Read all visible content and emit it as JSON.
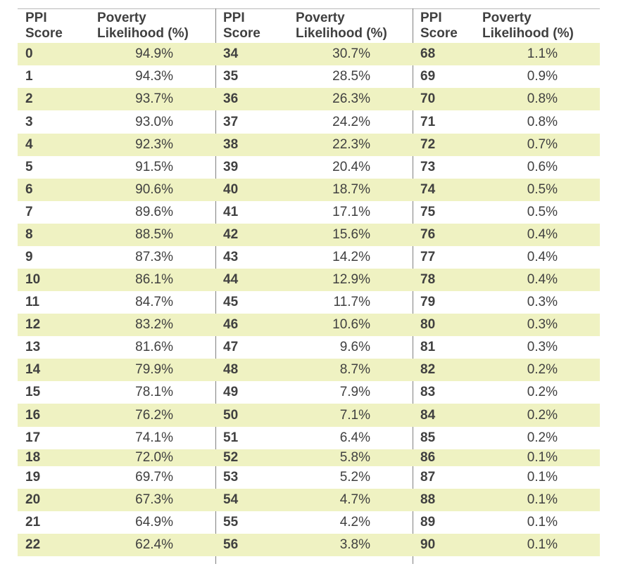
{
  "headers": [
    {
      "score": "PPI\nScore",
      "likelihood": "Poverty\nLikelihood (%)"
    },
    {
      "score": "PPI\nScore",
      "likelihood": "Poverty\nLikelihood (%)"
    },
    {
      "score": "PPI\nScore",
      "likelihood": "Poverty\nLikelihood (%)"
    }
  ],
  "colors": {
    "shaded_row": "#eff2c2",
    "text": "#404040",
    "divider": "#7f7f7f"
  },
  "rows": [
    [
      [
        "0",
        "94.9%"
      ],
      [
        "34",
        "30.7%"
      ],
      [
        "68",
        "1.1%"
      ]
    ],
    [
      [
        "1",
        "94.3%"
      ],
      [
        "35",
        "28.5%"
      ],
      [
        "69",
        "0.9%"
      ]
    ],
    [
      [
        "2",
        "93.7%"
      ],
      [
        "36",
        "26.3%"
      ],
      [
        "70",
        "0.8%"
      ]
    ],
    [
      [
        "3",
        "93.0%"
      ],
      [
        "37",
        "24.2%"
      ],
      [
        "71",
        "0.8%"
      ]
    ],
    [
      [
        "4",
        "92.3%"
      ],
      [
        "38",
        "22.3%"
      ],
      [
        "72",
        "0.7%"
      ]
    ],
    [
      [
        "5",
        "91.5%"
      ],
      [
        "39",
        "20.4%"
      ],
      [
        "73",
        "0.6%"
      ]
    ],
    [
      [
        "6",
        "90.6%"
      ],
      [
        "40",
        "18.7%"
      ],
      [
        "74",
        "0.5%"
      ]
    ],
    [
      [
        "7",
        "89.6%"
      ],
      [
        "41",
        "17.1%"
      ],
      [
        "75",
        "0.5%"
      ]
    ],
    [
      [
        "8",
        "88.5%"
      ],
      [
        "42",
        "15.6%"
      ],
      [
        "76",
        "0.4%"
      ]
    ],
    [
      [
        "9",
        "87.3%"
      ],
      [
        "43",
        "14.2%"
      ],
      [
        "77",
        "0.4%"
      ]
    ],
    [
      [
        "10",
        "86.1%"
      ],
      [
        "44",
        "12.9%"
      ],
      [
        "78",
        "0.4%"
      ]
    ],
    [
      [
        "11",
        "84.7%"
      ],
      [
        "45",
        "11.7%"
      ],
      [
        "79",
        "0.3%"
      ]
    ],
    [
      [
        "12",
        "83.2%"
      ],
      [
        "46",
        "10.6%"
      ],
      [
        "80",
        "0.3%"
      ]
    ],
    [
      [
        "13",
        "81.6%"
      ],
      [
        "47",
        "9.6%"
      ],
      [
        "81",
        "0.3%"
      ]
    ],
    [
      [
        "14",
        "79.9%"
      ],
      [
        "48",
        "8.7%"
      ],
      [
        "82",
        "0.2%"
      ]
    ],
    [
      [
        "15",
        "78.1%"
      ],
      [
        "49",
        "7.9%"
      ],
      [
        "83",
        "0.2%"
      ]
    ],
    [
      [
        "16",
        "76.2%"
      ],
      [
        "50",
        "7.1%"
      ],
      [
        "84",
        "0.2%"
      ]
    ],
    [
      [
        "17",
        "74.1%"
      ],
      [
        "51",
        "6.4%"
      ],
      [
        "85",
        "0.2%"
      ]
    ],
    [
      [
        "18",
        "72.0%"
      ],
      [
        "52",
        "5.8%"
      ],
      [
        "86",
        "0.1%"
      ]
    ],
    [
      [
        "19",
        "69.7%"
      ],
      [
        "53",
        "5.2%"
      ],
      [
        "87",
        "0.1%"
      ]
    ],
    [
      [
        "20",
        "67.3%"
      ],
      [
        "54",
        "4.7%"
      ],
      [
        "88",
        "0.1%"
      ]
    ],
    [
      [
        "21",
        "64.9%"
      ],
      [
        "55",
        "4.2%"
      ],
      [
        "89",
        "0.1%"
      ]
    ],
    [
      [
        "22",
        "62.4%"
      ],
      [
        "56",
        "3.8%"
      ],
      [
        "90",
        "0.1%"
      ]
    ]
  ]
}
